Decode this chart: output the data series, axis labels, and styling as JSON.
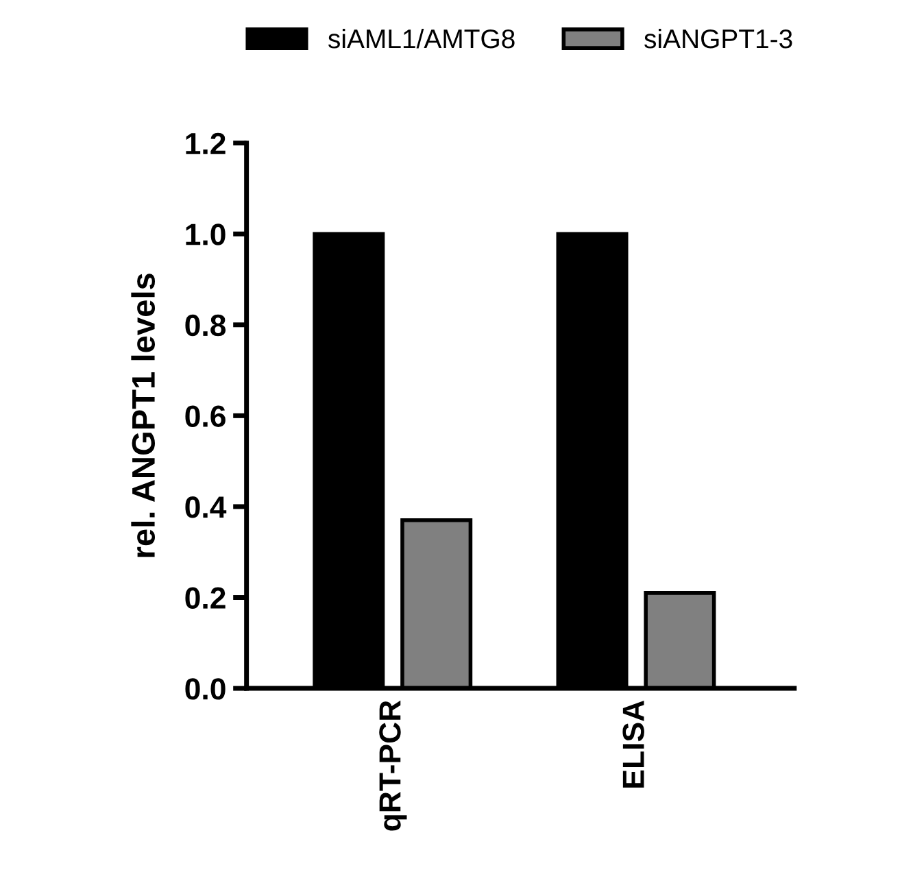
{
  "chart_data": {
    "type": "bar",
    "ylabel": "rel. ANGPT1 levels",
    "categories": [
      "qRT-PCR",
      "ELISA"
    ],
    "series": [
      {
        "name": "siAML1/AMTG8",
        "color": "#000000",
        "values": [
          1.0,
          1.0
        ]
      },
      {
        "name": "siANGPT1-3",
        "color": "#808080",
        "values": [
          0.37,
          0.21
        ]
      }
    ],
    "ylim": [
      0,
      1.2
    ],
    "yticks": [
      {
        "value": 0,
        "label": "0.0"
      },
      {
        "value": 0.2,
        "label": "0.2"
      },
      {
        "value": 0.4,
        "label": "0.4"
      },
      {
        "value": 0.6,
        "label": "0.6"
      },
      {
        "value": 0.8,
        "label": "0.8"
      },
      {
        "value": 1.0,
        "label": "1.0"
      },
      {
        "value": 1.2,
        "label": "1.2"
      }
    ],
    "legend": "top",
    "grid": false
  }
}
